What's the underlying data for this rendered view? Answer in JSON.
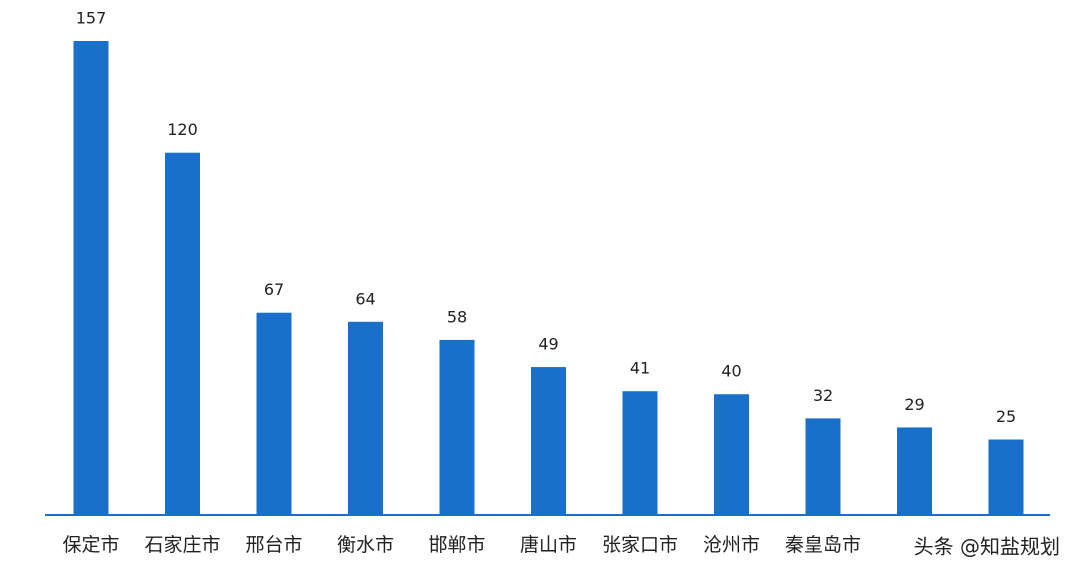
{
  "chart_data": {
    "type": "bar",
    "categories": [
      "保定市",
      "石家庄市",
      "邢台市",
      "衡水市",
      "邯郸市",
      "唐山市",
      "张家口市",
      "沧州市",
      "秦皇岛市",
      null,
      null
    ],
    "values": [
      157,
      120,
      67,
      64,
      58,
      49,
      41,
      40,
      32,
      29,
      25
    ],
    "color": "#1a6fc8",
    "watermark": "头条 @知盐规划"
  }
}
